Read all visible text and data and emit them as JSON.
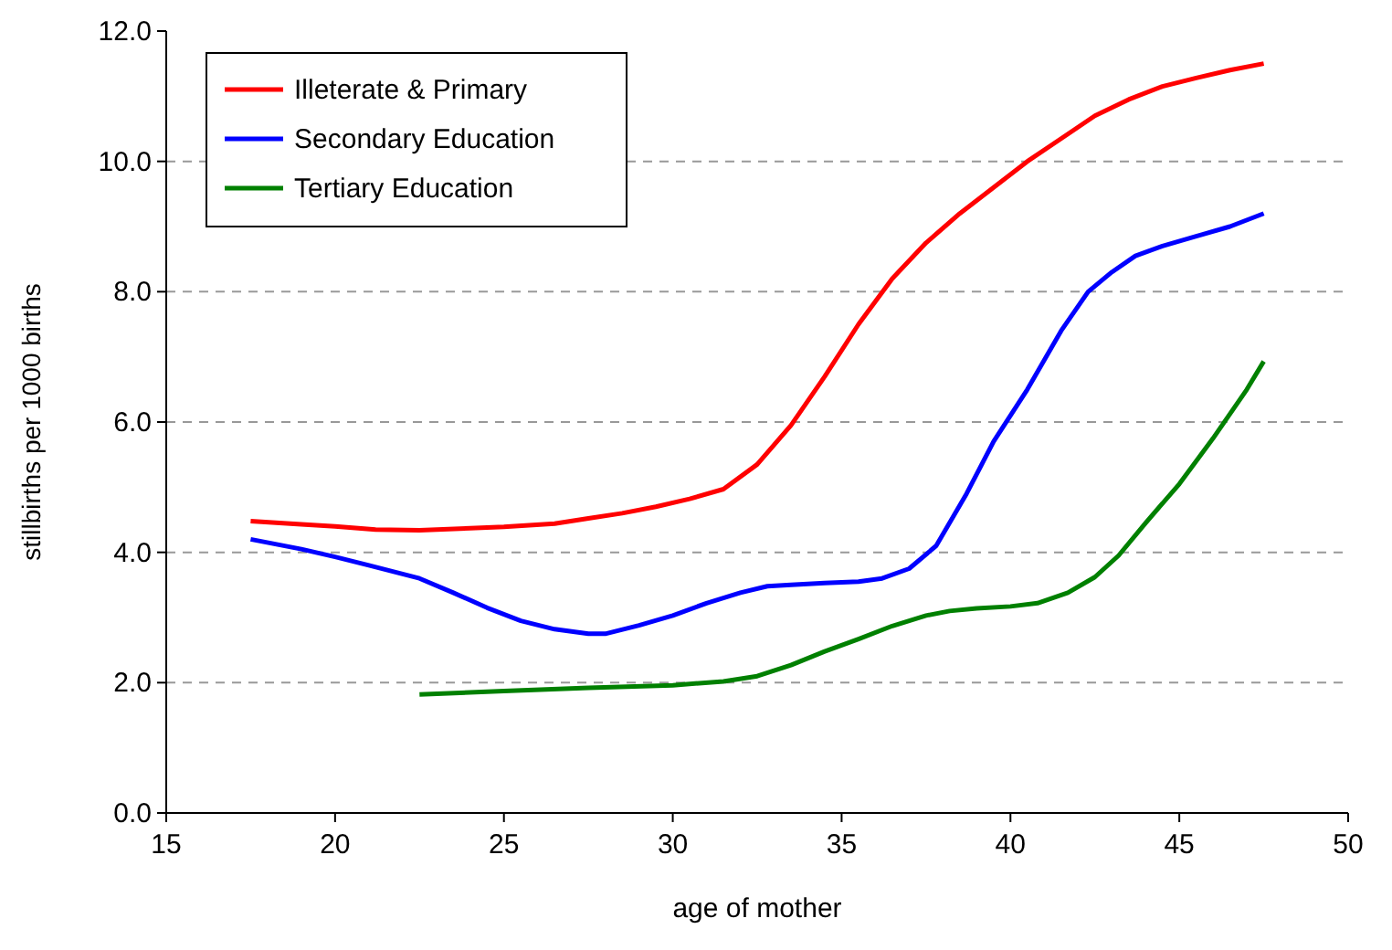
{
  "chart_data": {
    "type": "line",
    "xlabel": "age of mother",
    "ylabel": "stillbirths per 1000 births",
    "xlim": [
      15,
      50
    ],
    "xticks": [
      15,
      20,
      25,
      30,
      35,
      40,
      45,
      50
    ],
    "ylim": [
      0,
      12
    ],
    "yticks": [
      {
        "value": 0,
        "label": "0.0"
      },
      {
        "value": 2,
        "label": "2.0"
      },
      {
        "value": 4,
        "label": "4.0"
      },
      {
        "value": 6,
        "label": "6.0"
      },
      {
        "value": 8,
        "label": "8.0"
      },
      {
        "value": 10,
        "label": "10.0"
      },
      {
        "value": 12,
        "label": "12.0"
      }
    ],
    "grid": "y",
    "legend": "top left",
    "line_style": "solid",
    "series": [
      {
        "name": "Illeterate & Primary",
        "color": "#ff0000",
        "x": [
          17.5,
          19,
          20,
          21.2,
          22.5,
          24,
          25,
          26.5,
          27.5,
          28.5,
          29.5,
          30.5,
          31.5,
          32.5,
          33.5,
          34.5,
          35.5,
          36.5,
          37.5,
          38.5,
          39.5,
          40.5,
          41.5,
          42.5,
          43.5,
          44.5,
          45.5,
          46.5,
          47.5
        ],
        "values": [
          4.48,
          4.43,
          4.4,
          4.35,
          4.34,
          4.37,
          4.39,
          4.44,
          4.52,
          4.6,
          4.7,
          4.82,
          4.97,
          5.35,
          5.95,
          6.7,
          7.5,
          8.2,
          8.75,
          9.2,
          9.6,
          10.0,
          10.35,
          10.7,
          10.95,
          11.15,
          11.28,
          11.4,
          11.5
        ]
      },
      {
        "name": "Secondary Education",
        "color": "#0000ff",
        "x": [
          17.5,
          19,
          20,
          21,
          22.5,
          23.5,
          24.5,
          25.5,
          26.5,
          27.5,
          28,
          29,
          30,
          31,
          32,
          32.8,
          33.5,
          34.5,
          35.5,
          36.2,
          37,
          37.8,
          38.7,
          39.5,
          40.5,
          41.5,
          42.3,
          43,
          43.7,
          44.5,
          45.5,
          46.5,
          47.5
        ],
        "values": [
          4.2,
          4.05,
          3.93,
          3.8,
          3.6,
          3.38,
          3.15,
          2.95,
          2.82,
          2.75,
          2.75,
          2.88,
          3.03,
          3.22,
          3.38,
          3.48,
          3.5,
          3.53,
          3.55,
          3.6,
          3.75,
          4.1,
          4.9,
          5.7,
          6.5,
          7.4,
          8.0,
          8.3,
          8.55,
          8.7,
          8.85,
          9.0,
          9.2
        ]
      },
      {
        "name": "Tertiary Education",
        "color": "#008000",
        "x": [
          22.5,
          25,
          27.5,
          30,
          31.5,
          32.5,
          33.5,
          34.5,
          35.5,
          36.5,
          37.5,
          38.2,
          39,
          40,
          40.8,
          41.7,
          42.5,
          43.2,
          44,
          45,
          46,
          47,
          47.5
        ],
        "values": [
          1.82,
          1.87,
          1.92,
          1.96,
          2.02,
          2.1,
          2.27,
          2.48,
          2.67,
          2.87,
          3.03,
          3.1,
          3.14,
          3.17,
          3.22,
          3.38,
          3.62,
          3.95,
          4.45,
          5.05,
          5.75,
          6.5,
          6.93
        ]
      }
    ]
  }
}
